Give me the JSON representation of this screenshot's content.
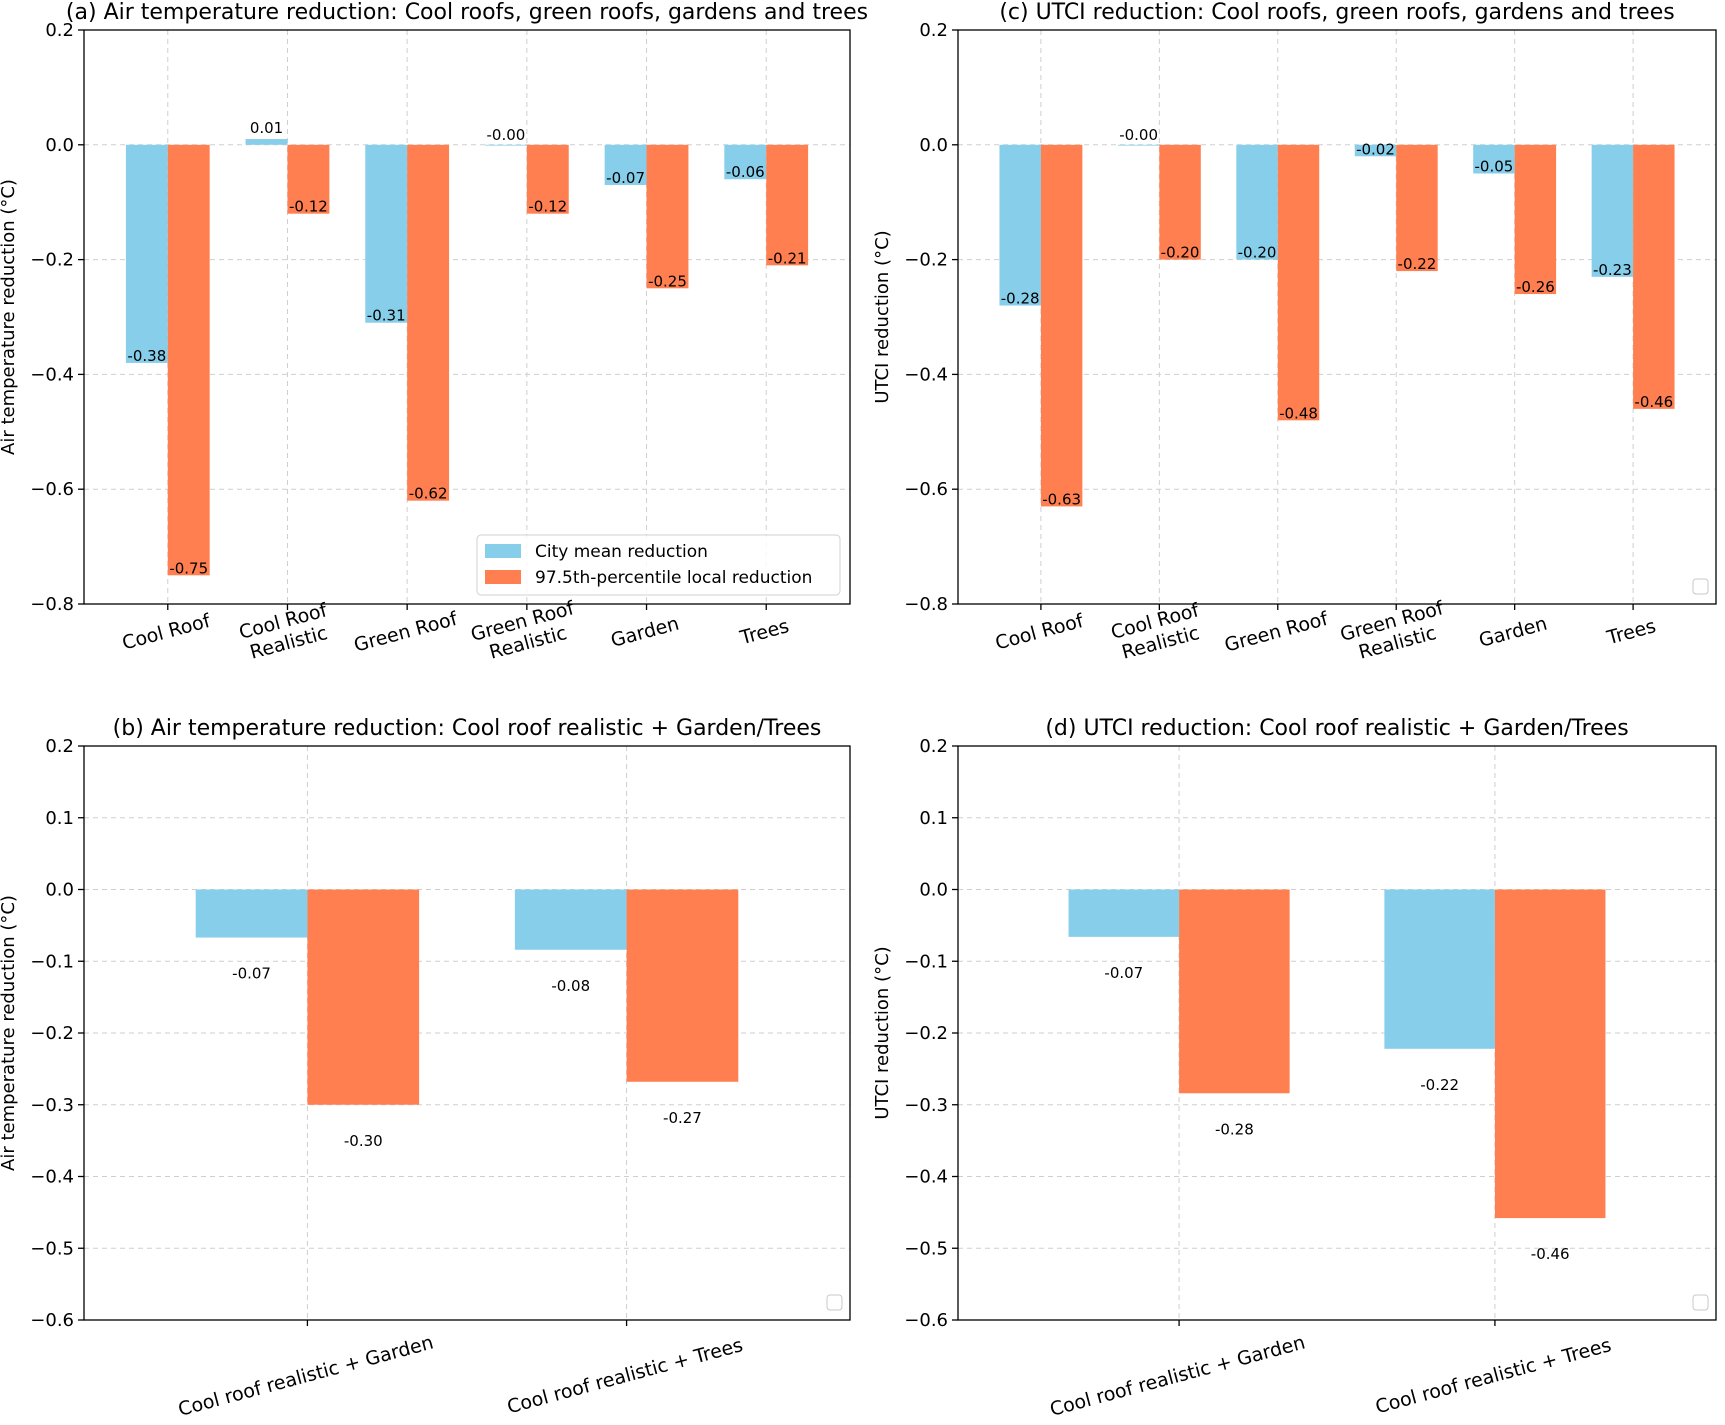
{
  "colors": {
    "city_mean": "#87CEEB",
    "percentile": "#FF7F50"
  },
  "chart_data": [
    {
      "id": "a",
      "type": "bar",
      "title": "(a) Air temperature reduction: Cool roofs, green roofs, gardens and trees",
      "ylabel": "Air temperature reduction (°C)",
      "xlabel": "",
      "categories": [
        [
          "Cool Roof"
        ],
        [
          "Cool Roof",
          "Realistic"
        ],
        [
          "Green Roof"
        ],
        [
          "Green Roof",
          "Realistic"
        ],
        [
          "Garden"
        ],
        [
          "Trees"
        ]
      ],
      "ylim": [
        -0.8,
        0.2
      ],
      "yticks": [
        0.2,
        0.0,
        -0.2,
        -0.4,
        -0.6,
        -0.8
      ],
      "ytick_labels": [
        "0.2",
        "0.0",
        "−0.2",
        "−0.4",
        "−0.6",
        "−0.8"
      ],
      "series": [
        {
          "name": "City mean reduction",
          "values": [
            -0.38,
            0.01,
            -0.31,
            -0.0,
            -0.07,
            -0.06
          ],
          "labels": [
            "-0.38",
            "0.01",
            "-0.31",
            "-0.00",
            "-0.07",
            "-0.06"
          ]
        },
        {
          "name": "97.5th-percentile local reduction",
          "values": [
            -0.75,
            -0.12,
            -0.62,
            -0.12,
            -0.25,
            -0.21
          ],
          "labels": [
            "-0.75",
            "-0.12",
            "-0.62",
            "-0.12",
            "-0.25",
            "-0.21"
          ]
        }
      ],
      "label_position": "edge",
      "legend": "lower right",
      "grid": true
    },
    {
      "id": "c",
      "type": "bar",
      "title": "(c) UTCI reduction: Cool roofs, green roofs, gardens and trees",
      "ylabel": "UTCI reduction (°C)",
      "xlabel": "",
      "categories": [
        [
          "Cool Roof"
        ],
        [
          "Cool Roof",
          "Realistic"
        ],
        [
          "Green Roof"
        ],
        [
          "Green Roof",
          "Realistic"
        ],
        [
          "Garden"
        ],
        [
          "Trees"
        ]
      ],
      "ylim": [
        -0.8,
        0.2
      ],
      "yticks": [
        0.2,
        0.0,
        -0.2,
        -0.4,
        -0.6,
        -0.8
      ],
      "ytick_labels": [
        "0.2",
        "0.0",
        "−0.2",
        "−0.4",
        "−0.6",
        "−0.8"
      ],
      "series": [
        {
          "name": "",
          "values": [
            -0.28,
            -0.0,
            -0.2,
            -0.02,
            -0.05,
            -0.23
          ],
          "labels": [
            "-0.28",
            "-0.00",
            "-0.20",
            "-0.02",
            "-0.05",
            "-0.23"
          ]
        },
        {
          "name": "",
          "values": [
            -0.63,
            -0.2,
            -0.48,
            -0.22,
            -0.26,
            -0.46
          ],
          "labels": [
            "-0.63",
            "-0.20",
            "-0.48",
            "-0.22",
            "-0.26",
            "-0.46"
          ]
        }
      ],
      "label_position": "edge",
      "legend": "empty box, lower right",
      "grid": true
    },
    {
      "id": "b",
      "type": "bar",
      "title": "(b) Air temperature reduction: Cool roof realistic + Garden/Trees",
      "ylabel": "Air temperature reduction (°C)",
      "xlabel": "",
      "categories": [
        [
          "Cool roof realistic + Garden"
        ],
        [
          "Cool roof realistic + Trees"
        ]
      ],
      "ylim": [
        -0.6,
        0.2
      ],
      "yticks": [
        0.2,
        0.1,
        0.0,
        -0.1,
        -0.2,
        -0.3,
        -0.4,
        -0.5,
        -0.6
      ],
      "ytick_labels": [
        "0.2",
        "0.1",
        "0.0",
        "−0.1",
        "−0.2",
        "−0.3",
        "−0.4",
        "−0.5",
        "−0.6"
      ],
      "series": [
        {
          "name": "",
          "values": [
            -0.067,
            -0.084
          ],
          "labels": [
            "-0.07",
            "-0.08"
          ]
        },
        {
          "name": "",
          "values": [
            -0.3,
            -0.268
          ],
          "labels": [
            "-0.30",
            "-0.27"
          ]
        }
      ],
      "label_position": "below",
      "legend": "empty box, lower right",
      "grid": true
    },
    {
      "id": "d",
      "type": "bar",
      "title": "(d) UTCI reduction: Cool roof realistic + Garden/Trees",
      "ylabel": "UTCI reduction (°C)",
      "xlabel": "",
      "categories": [
        [
          "Cool roof realistic + Garden"
        ],
        [
          "Cool roof realistic + Trees"
        ]
      ],
      "ylim": [
        -0.6,
        0.2
      ],
      "yticks": [
        0.2,
        0.1,
        0.0,
        -0.1,
        -0.2,
        -0.3,
        -0.4,
        -0.5,
        -0.6
      ],
      "ytick_labels": [
        "0.2",
        "0.1",
        "0.0",
        "−0.1",
        "−0.2",
        "−0.3",
        "−0.4",
        "−0.5",
        "−0.6"
      ],
      "series": [
        {
          "name": "",
          "values": [
            -0.066,
            -0.222
          ],
          "labels": [
            "-0.07",
            "-0.22"
          ]
        },
        {
          "name": "",
          "values": [
            -0.284,
            -0.458
          ],
          "labels": [
            "-0.28",
            "-0.46"
          ]
        }
      ],
      "label_position": "below",
      "legend": "empty box, lower right",
      "grid": true
    }
  ]
}
